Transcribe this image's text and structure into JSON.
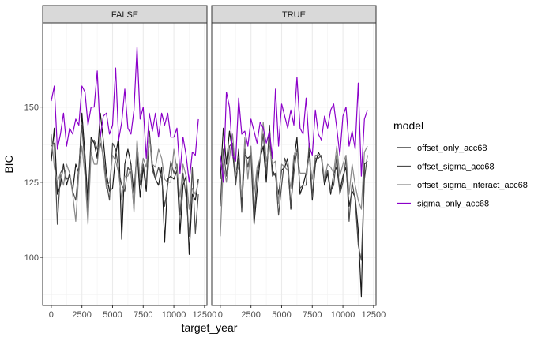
{
  "chart_data": {
    "type": "line",
    "xlabel": "target_year",
    "ylabel": "BIC",
    "xlim": [
      -700,
      12700
    ],
    "ylim": [
      84,
      178
    ],
    "x_ticks": [
      0,
      2500,
      5000,
      7500,
      10000,
      12500
    ],
    "x_tick_labels": [
      "0",
      "2500",
      "5000",
      "7500",
      "10000",
      "12500"
    ],
    "y_ticks": [
      100,
      125,
      150
    ],
    "y_tick_labels": [
      "100",
      "125",
      "150"
    ],
    "grid": true,
    "legend": {
      "title": "model",
      "placement": "right",
      "entries": [
        "offset_only_acc68",
        "offset_sigma_acc68",
        "offset_sigma_interact_acc68",
        "sigma_only_acc68"
      ]
    },
    "colors": {
      "offset_only_acc68": "#1a1a1a",
      "offset_sigma_acc68": "#4d4d4d",
      "offset_sigma_interact_acc68": "#888888",
      "sigma_only_acc68": "#8b00c9"
    },
    "x": [
      0,
      250,
      500,
      750,
      1000,
      1250,
      1500,
      1750,
      2000,
      2250,
      2500,
      2750,
      3000,
      3250,
      3500,
      3750,
      4000,
      4250,
      4500,
      4750,
      5000,
      5250,
      5500,
      5750,
      6000,
      6250,
      6500,
      6750,
      7000,
      7250,
      7500,
      7750,
      8000,
      8250,
      8500,
      8750,
      9000,
      9250,
      9500,
      9750,
      10000,
      10250,
      10500,
      10750,
      11000,
      11250,
      11500,
      11750,
      12000
    ],
    "panels": [
      {
        "label": "FALSE",
        "series": [
          {
            "name": "offset_only_acc68",
            "values": [
              132,
              143,
              121,
              124,
              131,
              124,
              128,
              122,
              131,
              128,
              148,
              134,
              118,
              140,
              138,
              133,
              148,
              139,
              128,
              122,
              123,
              134,
              140,
              106,
              131,
              136,
              131,
              121,
              136,
              120,
              130,
              122,
              142,
              131,
              126,
              124,
              130,
              105,
              126,
              127,
              126,
              129,
              108,
              124,
              127,
              101,
              121,
              119,
              126
            ]
          },
          {
            "name": "offset_sigma_acc68",
            "values": [
              137,
              138,
              111,
              128,
              130,
              126,
              127,
              122,
              119,
              130,
              144,
              130,
              113,
              138,
              139,
              136,
              138,
              134,
              125,
              119,
              138,
              136,
              129,
              124,
              122,
              130,
              128,
              116,
              139,
              124,
              131,
              124,
              141,
              129,
              126,
              130,
              126,
              117,
              124,
              132,
              128,
              131,
              114,
              128,
              120,
              107,
              130,
              108,
              121
            ]
          },
          {
            "name": "offset_sigma_interact_acc68",
            "values": [
              141,
              130,
              125,
              128,
              124,
              131,
              128,
              121,
              112,
              128,
              137,
              127,
              111,
              135,
              131,
              131,
              141,
              132,
              123,
              125,
              134,
              132,
              128,
              119,
              127,
              127,
              130,
              115,
              138,
              126,
              133,
              130,
              140,
              131,
              130,
              136,
              133,
              126,
              125,
              125,
              136,
              129,
              120,
              131,
              127,
              116,
              123,
              121,
              125
            ]
          },
          {
            "name": "sigma_only_acc68",
            "values": [
              152,
              157,
              136,
              141,
              148,
              137,
              143,
              141,
              146,
              144,
              157,
              155,
              144,
              150,
              150,
              162,
              140,
              147,
              148,
              141,
              144,
              163,
              139,
              145,
              156,
              143,
              141,
              149,
              170,
              146,
              150,
              133,
              148,
              142,
              148,
              140,
              148,
              144,
              148,
              140,
              140,
              143,
              128,
              140,
              134,
              125,
              135,
              134,
              146
            ]
          }
        ]
      },
      {
        "label": "TRUE",
        "series": [
          {
            "name": "offset_only_acc68",
            "values": [
              126,
              143,
              131,
              142,
              135,
              125,
              136,
              117,
              134,
              133,
              134,
              111,
              122,
              133,
              137,
              125,
              144,
              129,
              127,
              121,
              129,
              130,
              133,
              116,
              132,
              140,
              121,
              124,
              128,
              135,
              119,
              131,
              135,
              133,
              124,
              128,
              121,
              128,
              130,
              122,
              127,
              130,
              117,
              122,
              120,
              109,
              87,
              131,
              132
            ]
          },
          {
            "name": "offset_sigma_acc68",
            "values": [
              117,
              136,
              127,
              137,
              138,
              124,
              133,
              115,
              136,
              130,
              136,
              113,
              128,
              133,
              141,
              128,
              141,
              127,
              128,
              114,
              124,
              133,
              130,
              117,
              128,
              136,
              123,
              124,
              124,
              138,
              120,
              133,
              133,
              134,
              125,
              129,
              122,
              124,
              134,
              121,
              125,
              133,
              112,
              125,
              119,
              104,
              99,
              126,
              134
            ]
          },
          {
            "name": "offset_sigma_interact_acc68",
            "values": [
              107,
              131,
              125,
              133,
              141,
              128,
              130,
              120,
              140,
              126,
              137,
              121,
              130,
              133,
              145,
              132,
              137,
              131,
              132,
              118,
              131,
              130,
              129,
              123,
              134,
              135,
              128,
              128,
              128,
              133,
              126,
              134,
              134,
              134,
              126,
              131,
              130,
              128,
              137,
              127,
              131,
              134,
              121,
              131,
              124,
              119,
              116,
              135,
              137
            ]
          },
          {
            "name": "sigma_only_acc68",
            "values": [
              134,
              125,
              155,
              150,
              134,
              132,
              153,
              141,
              142,
              137,
              146,
              142,
              138,
              145,
              143,
              138,
              142,
              133,
              156,
              137,
              151,
              147,
              143,
              149,
              144,
              160,
              143,
              141,
              153,
              137,
              134,
              149,
              141,
              139,
              147,
              143,
              149,
              151,
              143,
              134,
              147,
              150,
              137,
              142,
              136,
              158,
              127,
              146,
              149
            ]
          }
        ]
      }
    ]
  }
}
